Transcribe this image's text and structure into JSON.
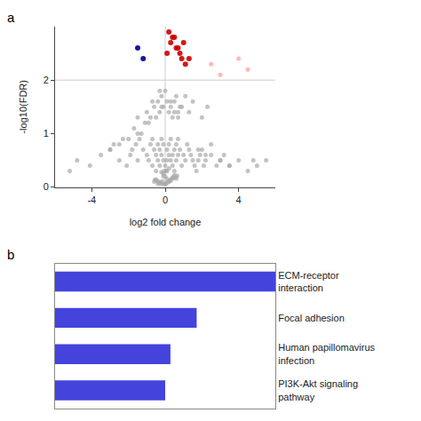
{
  "chart_data": [
    {
      "type": "scatter",
      "title": "a",
      "xlabel": "log2 fold change",
      "ylabel": "-log10(FDR)",
      "xlim": [
        -6,
        6
      ],
      "ylim": [
        0,
        3
      ],
      "xticks": [
        -4,
        0,
        4
      ],
      "yticks": [
        0,
        1,
        2
      ],
      "grid": false,
      "hlines": [
        2.0
      ],
      "vlines": [
        0.0
      ],
      "series": [
        {
          "color": "#aaaaaa",
          "x": [
            -5.2,
            -4.8,
            -4.1,
            -3.5,
            -3.0,
            -2.8,
            -2.5,
            -2.3,
            -2.1,
            -1.9,
            -1.8,
            -1.7,
            -1.6,
            -1.5,
            -1.5,
            -1.4,
            -1.3,
            -1.2,
            -1.1,
            -1.0,
            -0.9,
            -0.8,
            -0.7,
            -0.7,
            -0.6,
            -0.5,
            -0.5,
            -0.4,
            -0.4,
            -0.3,
            -0.3,
            -0.2,
            -0.2,
            -0.1,
            -0.1,
            -0.05,
            0.0,
            0.0,
            0.05,
            0.1,
            0.1,
            0.2,
            0.2,
            0.3,
            0.3,
            0.4,
            0.4,
            0.5,
            0.5,
            0.6,
            0.6,
            0.7,
            0.7,
            0.8,
            0.9,
            1.0,
            1.1,
            1.2,
            1.3,
            1.4,
            1.5,
            1.6,
            1.7,
            1.8,
            1.9,
            2.0,
            2.1,
            2.2,
            2.5,
            2.8,
            3.0,
            3.2,
            3.5,
            4.0,
            4.5,
            5.0,
            5.5,
            -0.6,
            -0.5,
            -0.4,
            -0.3,
            -0.2,
            -0.1,
            0.0,
            0.1,
            0.2,
            0.3,
            0.4,
            0.5,
            0.6,
            0.7,
            0.8,
            -0.8,
            -0.7,
            -0.9,
            -1.0,
            -0.3,
            -0.2,
            0.3,
            0.5,
            0.7,
            0.9,
            1.1,
            1.3,
            1.5,
            2.0,
            2.3,
            0.1,
            0.2,
            -0.1,
            -0.2,
            0.3,
            -0.3,
            0.4,
            -0.4,
            0.5,
            -0.5,
            0.6,
            -0.6,
            0.1,
            -0.1,
            0.2,
            -0.2,
            0.0,
            0.05,
            -0.05,
            0.15,
            -0.15,
            0.25,
            -0.25,
            0.35,
            -0.35,
            0.45,
            -0.45,
            0.55,
            -0.55,
            0.65,
            1.8,
            2.2,
            2.5,
            3.0,
            3.5,
            4.8,
            -1.5,
            -2.0,
            -2.5,
            -3.0
          ],
          "values": [
            0.3,
            0.5,
            0.4,
            0.6,
            0.7,
            0.8,
            0.5,
            0.9,
            0.4,
            0.6,
            0.7,
            1.1,
            0.8,
            1.3,
            0.5,
            0.9,
            1.0,
            0.7,
            1.2,
            0.6,
            0.5,
            0.8,
            0.9,
            0.4,
            0.7,
            0.6,
            0.3,
            0.8,
            0.5,
            0.4,
            0.7,
            0.9,
            0.6,
            0.5,
            0.8,
            0.3,
            0.2,
            0.4,
            0.3,
            0.5,
            0.7,
            0.6,
            0.8,
            0.5,
            0.9,
            0.6,
            0.4,
            0.7,
            0.3,
            0.8,
            0.5,
            0.6,
            0.9,
            0.7,
            0.4,
            0.6,
            0.5,
            0.8,
            0.7,
            0.6,
            0.5,
            0.4,
            0.3,
            0.5,
            0.6,
            0.7,
            0.4,
            0.5,
            0.6,
            0.4,
            0.5,
            0.6,
            0.4,
            0.5,
            0.3,
            0.4,
            0.5,
            1.5,
            1.3,
            1.6,
            1.4,
            1.7,
            1.5,
            1.8,
            1.6,
            1.4,
            1.5,
            1.3,
            1.6,
            1.7,
            1.4,
            1.5,
            1.3,
            1.6,
            1.2,
            1.4,
            1.8,
            1.5,
            1.6,
            1.4,
            1.3,
            1.5,
            1.7,
            1.4,
            1.6,
            1.3,
            1.5,
            0.15,
            0.1,
            0.2,
            0.05,
            0.12,
            0.08,
            0.18,
            0.06,
            0.22,
            0.14,
            0.16,
            0.1,
            0.3,
            0.25,
            0.35,
            0.28,
            0.05,
            0.07,
            0.06,
            0.09,
            0.11,
            0.13,
            0.08,
            0.15,
            0.1,
            0.17,
            0.12,
            0.19,
            0.14,
            0.21,
            0.7,
            0.6,
            0.8,
            0.5,
            0.4,
            0.5,
            1.0,
            0.9,
            0.8,
            0.7
          ]
        },
        {
          "color": "#cc0000",
          "x": [
            0.1,
            0.3,
            0.5,
            0.7,
            0.9,
            1.1,
            0.2,
            0.6,
            0.8,
            1.0,
            1.3,
            0.4
          ],
          "values": [
            2.5,
            2.7,
            2.8,
            2.6,
            2.4,
            2.3,
            2.9,
            2.6,
            2.5,
            2.7,
            2.4,
            2.8
          ]
        },
        {
          "color": "#00008b",
          "x": [
            -1.5,
            -1.2
          ],
          "values": [
            2.6,
            2.4
          ]
        },
        {
          "color": "#ffb0b0",
          "x": [
            2.5,
            3.0,
            4.0,
            4.5
          ],
          "values": [
            2.3,
            2.1,
            2.4,
            2.2
          ]
        }
      ]
    },
    {
      "type": "bar",
      "title": "b",
      "orientation": "horizontal",
      "categories": [
        "ECM-receptor\ninteraction",
        "Focal adhesion",
        "Human papillomavirus\ninfection",
        "PI3K-Akt signaling\npathway"
      ],
      "values": [
        42,
        27,
        22,
        21
      ],
      "color": "#4444dd",
      "xlim": [
        0,
        42
      ],
      "xticks": [],
      "tick_labels": "y",
      "grid": false
    }
  ]
}
